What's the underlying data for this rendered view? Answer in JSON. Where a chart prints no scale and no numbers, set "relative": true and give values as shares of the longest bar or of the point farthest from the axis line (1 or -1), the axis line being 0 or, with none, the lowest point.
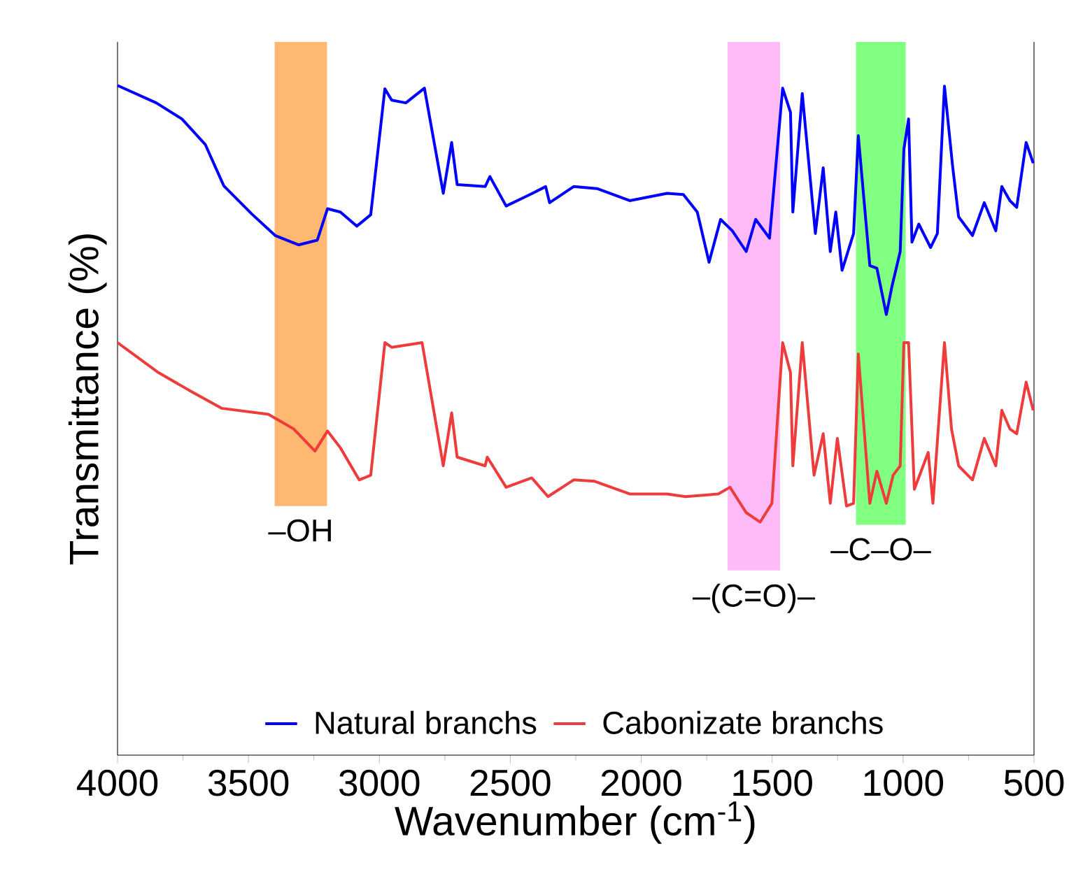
{
  "chart_data": {
    "type": "line",
    "xlabel": "Wavenumber (cm$^{-1}$)",
    "ylabel": "Transmittance (%)",
    "relative": true,
    "xlim": [
      4000,
      500
    ],
    "xticks": [
      4000,
      3500,
      3000,
      2500,
      2000,
      1500,
      1000,
      500
    ],
    "legend": "bottom",
    "series": [
      {
        "name": "Natural branchs",
        "color": "#0000ff",
        "x": [
          4000,
          3852,
          3754,
          3665,
          3594,
          3487,
          3398,
          3309,
          3237,
          3198,
          3149,
          3086,
          3033,
          2979,
          2953,
          2899,
          2828,
          2756,
          2724,
          2703,
          2596,
          2578,
          2516,
          2436,
          2365,
          2350,
          2258,
          2169,
          2044,
          1901,
          1839,
          1786,
          1741,
          1697,
          1652,
          1599,
          1563,
          1510,
          1460,
          1430,
          1421,
          1385,
          1335,
          1305,
          1278,
          1257,
          1233,
          1189,
          1171,
          1127,
          1100,
          1064,
          1043,
          1011,
          997,
          979,
          966,
          940,
          895,
          869,
          842,
          811,
          788,
          735,
          690,
          646,
          623,
          592,
          566,
          530,
          503
        ],
        "values": [
          1.0,
          0.974,
          0.95,
          0.912,
          0.85,
          0.808,
          0.776,
          0.762,
          0.769,
          0.816,
          0.811,
          0.79,
          0.807,
          0.995,
          0.978,
          0.974,
          0.996,
          0.839,
          0.915,
          0.852,
          0.849,
          0.864,
          0.82,
          0.835,
          0.849,
          0.825,
          0.849,
          0.846,
          0.828,
          0.839,
          0.837,
          0.811,
          0.736,
          0.8,
          0.783,
          0.752,
          0.8,
          0.772,
          0.996,
          0.96,
          0.811,
          0.988,
          0.779,
          0.877,
          0.752,
          0.811,
          0.724,
          0.779,
          0.925,
          0.731,
          0.727,
          0.658,
          0.699,
          0.752,
          0.905,
          0.95,
          0.766,
          0.793,
          0.758,
          0.779,
          0.999,
          0.88,
          0.804,
          0.776,
          0.825,
          0.783,
          0.849,
          0.828,
          0.818,
          0.915,
          0.884
        ]
      },
      {
        "name": "Cabonizate branchs",
        "color": "#ee3b3b",
        "x": [
          4000,
          3843,
          3718,
          3603,
          3424,
          3327,
          3246,
          3198,
          3149,
          3077,
          3033,
          2979,
          2953,
          2837,
          2756,
          2724,
          2703,
          2596,
          2588,
          2516,
          2418,
          2356,
          2258,
          2178,
          2044,
          1901,
          1831,
          1706,
          1661,
          1599,
          1546,
          1501,
          1460,
          1430,
          1421,
          1385,
          1340,
          1305,
          1278,
          1251,
          1216,
          1189,
          1171,
          1127,
          1100,
          1064,
          1038,
          1011,
          997,
          979,
          957,
          904,
          886,
          842,
          815,
          788,
          735,
          690,
          646,
          623,
          592,
          566,
          530,
          503
        ],
        "values": [
          0.616,
          0.571,
          0.543,
          0.518,
          0.509,
          0.487,
          0.454,
          0.484,
          0.459,
          0.411,
          0.418,
          0.616,
          0.609,
          0.616,
          0.432,
          0.511,
          0.445,
          0.432,
          0.445,
          0.4,
          0.414,
          0.386,
          0.411,
          0.409,
          0.39,
          0.39,
          0.386,
          0.39,
          0.4,
          0.362,
          0.348,
          0.376,
          0.616,
          0.571,
          0.432,
          0.616,
          0.418,
          0.48,
          0.376,
          0.473,
          0.372,
          0.376,
          0.599,
          0.376,
          0.424,
          0.376,
          0.418,
          0.432,
          0.616,
          0.616,
          0.397,
          0.452,
          0.376,
          0.616,
          0.487,
          0.432,
          0.411,
          0.473,
          0.432,
          0.515,
          0.487,
          0.48,
          0.557,
          0.515
        ]
      }
    ],
    "bands": [
      {
        "axis": "x",
        "from": 3400,
        "to": 3200,
        "label": "–OH",
        "color": "#ffb872"
      },
      {
        "axis": "x",
        "from": 1670,
        "to": 1470,
        "label": "–(C=O)–",
        "color": "#ffbbf7"
      },
      {
        "axis": "x",
        "from": 1180,
        "to": 990,
        "label": "–C–O–",
        "color": "#80ff80"
      }
    ]
  }
}
